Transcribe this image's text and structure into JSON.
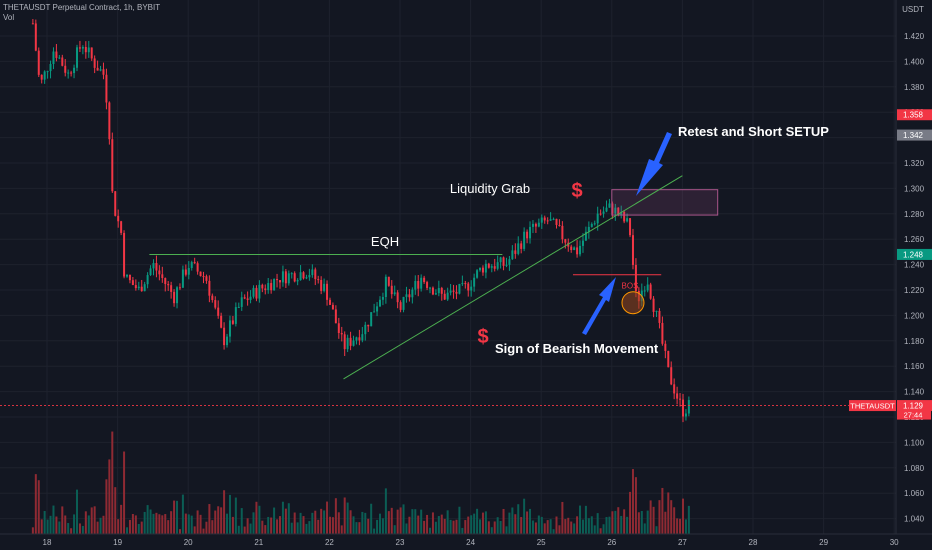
{
  "header": {
    "title": "THETAUSDT Perpetual Contract, 1h, BYBIT",
    "volume_label": "Vol"
  },
  "price_axis": {
    "currency": "USDT",
    "ticks": [
      "1.420",
      "1.400",
      "1.380",
      "1.360",
      "1.340",
      "1.320",
      "1.300",
      "1.280",
      "1.260",
      "1.240",
      "1.220",
      "1.200",
      "1.180",
      "1.160",
      "1.140",
      "1.120",
      "1.100",
      "1.080",
      "1.060",
      "1.040"
    ],
    "badges": [
      {
        "label": "1.358",
        "value": 1.358,
        "color": "#f23645"
      },
      {
        "label": "1.342",
        "value": 1.342,
        "color": "#787b86"
      },
      {
        "label": "1.248",
        "value": 1.248,
        "color": "#089981"
      },
      {
        "label": "1.129",
        "value": 1.129,
        "color": "#f23645"
      }
    ],
    "last_price_symbol": "THETAUSDT",
    "countdown": "27:44"
  },
  "time_axis": {
    "labels": [
      "18",
      "19",
      "20",
      "21",
      "22",
      "23",
      "24",
      "25",
      "26",
      "27",
      "28",
      "29",
      "30"
    ]
  },
  "annotations": {
    "eqh": "EQH",
    "liquidity_grab": "Liquidity Grab",
    "retest_setup": "Retest and Short SETUP",
    "bearish_sign": "Sign of Bearish Movement",
    "bos": "BOS",
    "dollar": "$"
  },
  "colors": {
    "background": "#131722",
    "up": "#089981",
    "down": "#f23645",
    "up_volume": "#0b5e55",
    "down_volume": "#8f2a33",
    "trendline": "#4caf50",
    "arrow": "#2962ff",
    "zone": "#a8558a"
  },
  "chart_data": {
    "type": "candlestick",
    "x_unit": "day",
    "x_labels": [
      "18",
      "19",
      "20",
      "21",
      "22",
      "23",
      "24",
      "25",
      "26",
      "27",
      "28",
      "29",
      "30"
    ],
    "y_range": [
      1.03,
      1.435
    ],
    "price_path": [
      {
        "day": 17.8,
        "price": 1.43
      },
      {
        "day": 17.9,
        "price": 1.38
      },
      {
        "day": 18.1,
        "price": 1.41
      },
      {
        "day": 18.3,
        "price": 1.39
      },
      {
        "day": 18.5,
        "price": 1.415
      },
      {
        "day": 18.65,
        "price": 1.4
      },
      {
        "day": 18.8,
        "price": 1.39
      },
      {
        "day": 18.87,
        "price": 1.36
      },
      {
        "day": 18.93,
        "price": 1.29
      },
      {
        "day": 19.05,
        "price": 1.265
      },
      {
        "day": 19.1,
        "price": 1.23
      },
      {
        "day": 19.3,
        "price": 1.22
      },
      {
        "day": 19.5,
        "price": 1.24
      },
      {
        "day": 19.8,
        "price": 1.215
      },
      {
        "day": 20.0,
        "price": 1.24
      },
      {
        "day": 20.25,
        "price": 1.23
      },
      {
        "day": 20.5,
        "price": 1.18
      },
      {
        "day": 20.75,
        "price": 1.21
      },
      {
        "day": 21.0,
        "price": 1.22
      },
      {
        "day": 21.3,
        "price": 1.23
      },
      {
        "day": 21.7,
        "price": 1.235
      },
      {
        "day": 21.95,
        "price": 1.22
      },
      {
        "day": 22.2,
        "price": 1.175
      },
      {
        "day": 22.5,
        "price": 1.19
      },
      {
        "day": 22.8,
        "price": 1.225
      },
      {
        "day": 23.0,
        "price": 1.205
      },
      {
        "day": 23.3,
        "price": 1.23
      },
      {
        "day": 23.6,
        "price": 1.215
      },
      {
        "day": 23.9,
        "price": 1.22
      },
      {
        "day": 24.2,
        "price": 1.24
      },
      {
        "day": 24.5,
        "price": 1.24
      },
      {
        "day": 24.8,
        "price": 1.265
      },
      {
        "day": 25.1,
        "price": 1.275
      },
      {
        "day": 25.5,
        "price": 1.25
      },
      {
        "day": 25.8,
        "price": 1.28
      },
      {
        "day": 26.0,
        "price": 1.285
      },
      {
        "day": 26.25,
        "price": 1.27
      },
      {
        "day": 26.35,
        "price": 1.21
      },
      {
        "day": 26.5,
        "price": 1.23
      },
      {
        "day": 26.65,
        "price": 1.195
      },
      {
        "day": 26.8,
        "price": 1.155
      },
      {
        "day": 27.0,
        "price": 1.125
      },
      {
        "day": 27.1,
        "price": 1.129
      }
    ],
    "levels": [
      {
        "name": "EQH",
        "price": 1.248,
        "from_day": 19.45,
        "to_day": 24.45
      },
      {
        "name": "BOS",
        "price": 1.232,
        "from_day": 25.45,
        "to_day": 26.7
      }
    ],
    "supply_zone": {
      "from_day": 26.0,
      "to_day": 27.5,
      "price_low": 1.279,
      "price_high": 1.299
    },
    "trendline": {
      "from": {
        "day": 22.2,
        "price": 1.15
      },
      "to": {
        "day": 27.0,
        "price": 1.31
      }
    },
    "current_price": 1.129
  }
}
